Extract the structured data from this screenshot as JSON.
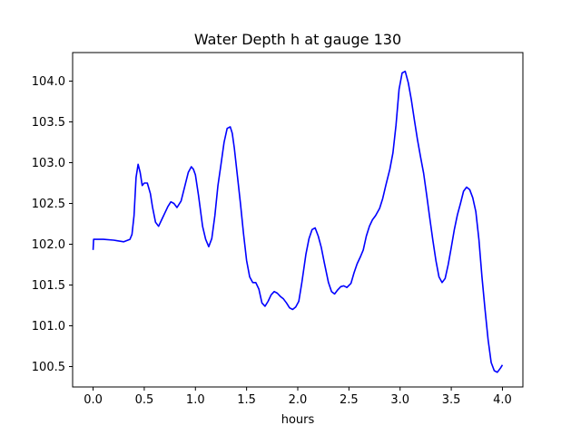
{
  "chart_data": {
    "type": "line",
    "title": "Water Depth h at gauge 130",
    "xlabel": "hours",
    "ylabel": "",
    "xlim": [
      -0.2,
      4.2
    ],
    "ylim": [
      100.25,
      104.35
    ],
    "x_ticks": [
      0.0,
      0.5,
      1.0,
      1.5,
      2.0,
      2.5,
      3.0,
      3.5,
      4.0
    ],
    "x_tick_labels": [
      "0.0",
      "0.5",
      "1.0",
      "1.5",
      "2.0",
      "2.5",
      "3.0",
      "3.5",
      "4.0"
    ],
    "y_ticks": [
      100.5,
      101.0,
      101.5,
      102.0,
      102.5,
      103.0,
      103.5,
      104.0
    ],
    "y_tick_labels": [
      "100.5",
      "101.0",
      "101.5",
      "102.0",
      "102.5",
      "103.0",
      "103.5",
      "104.0"
    ],
    "grid": false,
    "series": [
      {
        "color": "#0000ff",
        "x": [
          0.0,
          0.005,
          0.02,
          0.1,
          0.2,
          0.3,
          0.36,
          0.38,
          0.4,
          0.42,
          0.44,
          0.46,
          0.48,
          0.5,
          0.53,
          0.56,
          0.58,
          0.61,
          0.64,
          0.67,
          0.7,
          0.73,
          0.76,
          0.79,
          0.82,
          0.86,
          0.9,
          0.93,
          0.96,
          0.98,
          1.0,
          1.03,
          1.07,
          1.1,
          1.13,
          1.16,
          1.19,
          1.22,
          1.25,
          1.28,
          1.31,
          1.34,
          1.36,
          1.38,
          1.41,
          1.44,
          1.47,
          1.5,
          1.53,
          1.56,
          1.59,
          1.62,
          1.65,
          1.68,
          1.71,
          1.74,
          1.77,
          1.8,
          1.83,
          1.86,
          1.89,
          1.92,
          1.95,
          1.98,
          2.01,
          2.04,
          2.08,
          2.11,
          2.14,
          2.17,
          2.2,
          2.23,
          2.26,
          2.3,
          2.33,
          2.36,
          2.39,
          2.42,
          2.45,
          2.48,
          2.52,
          2.55,
          2.58,
          2.61,
          2.64,
          2.67,
          2.7,
          2.73,
          2.76,
          2.8,
          2.83,
          2.86,
          2.9,
          2.93,
          2.96,
          2.99,
          3.02,
          3.05,
          3.08,
          3.11,
          3.14,
          3.17,
          3.2,
          3.23,
          3.26,
          3.29,
          3.32,
          3.35,
          3.38,
          3.41,
          3.44,
          3.47,
          3.5,
          3.53,
          3.56,
          3.59,
          3.62,
          3.65,
          3.68,
          3.71,
          3.74,
          3.77,
          3.8,
          3.83,
          3.86,
          3.89,
          3.92,
          3.95,
          3.98,
          4.0
        ],
        "values": [
          101.93,
          102.06,
          102.06,
          102.06,
          102.05,
          102.03,
          102.06,
          102.12,
          102.35,
          102.82,
          102.98,
          102.88,
          102.72,
          102.75,
          102.75,
          102.62,
          102.46,
          102.27,
          102.22,
          102.3,
          102.38,
          102.46,
          102.52,
          102.5,
          102.45,
          102.53,
          102.73,
          102.88,
          102.95,
          102.92,
          102.85,
          102.6,
          102.22,
          102.06,
          101.97,
          102.07,
          102.35,
          102.72,
          102.98,
          103.25,
          103.42,
          103.44,
          103.36,
          103.18,
          102.84,
          102.5,
          102.13,
          101.8,
          101.6,
          101.53,
          101.53,
          101.45,
          101.28,
          101.24,
          101.3,
          101.38,
          101.42,
          101.4,
          101.36,
          101.33,
          101.28,
          101.22,
          101.2,
          101.23,
          101.3,
          101.53,
          101.88,
          102.07,
          102.18,
          102.2,
          102.1,
          101.96,
          101.77,
          101.53,
          101.42,
          101.39,
          101.44,
          101.48,
          101.49,
          101.47,
          101.52,
          101.65,
          101.76,
          101.84,
          101.93,
          102.1,
          102.22,
          102.3,
          102.35,
          102.44,
          102.56,
          102.72,
          102.92,
          103.12,
          103.46,
          103.9,
          104.1,
          104.12,
          103.98,
          103.77,
          103.52,
          103.28,
          103.07,
          102.87,
          102.6,
          102.32,
          102.05,
          101.8,
          101.6,
          101.53,
          101.58,
          101.75,
          101.96,
          102.18,
          102.36,
          102.5,
          102.65,
          102.7,
          102.67,
          102.57,
          102.4,
          102.06,
          101.6,
          101.2,
          100.83,
          100.55,
          100.45,
          100.43,
          100.48,
          100.52
        ]
      }
    ]
  }
}
